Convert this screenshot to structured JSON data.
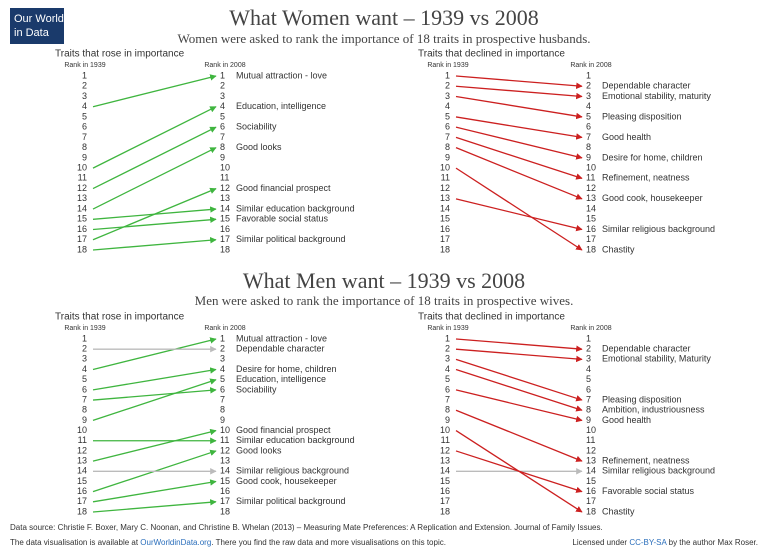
{
  "logo": {
    "line1": "Our World",
    "line2": "in Data"
  },
  "sections": [
    {
      "title": "What Women want – 1939 vs 2008",
      "subtitle": "Women were asked to rank the importance of 18 traits in prospective husbands."
    },
    {
      "title": "What Men want – 1939 vs 2008",
      "subtitle": "Men were asked to rank the importance of 18 traits in prospective wives."
    }
  ],
  "chart_data": [
    {
      "type": "slope",
      "title": "Traits that rose in importance",
      "x_labels": [
        "Rank in 1939",
        "Rank in 2008"
      ],
      "ylim": [
        1,
        18
      ],
      "yticks": [
        1,
        2,
        3,
        4,
        5,
        6,
        7,
        8,
        9,
        10,
        11,
        12,
        13,
        14,
        15,
        16,
        17,
        18
      ],
      "categories": [
        "Mutual attraction - love",
        "Education, intelligence",
        "Sociability",
        "Good looks",
        "Good financial prospect",
        "Similar education background",
        "Favorable social status",
        "Similar political background"
      ],
      "start": [
        4,
        10,
        12,
        14,
        17,
        15,
        16,
        18
      ],
      "end": [
        1,
        4,
        6,
        8,
        12,
        14,
        15,
        17
      ],
      "colors": [
        "#3fb53f",
        "#3fb53f",
        "#3fb53f",
        "#3fb53f",
        "#3fb53f",
        "#3fb53f",
        "#3fb53f",
        "#3fb53f"
      ]
    },
    {
      "type": "slope",
      "title": "Traits that declined in importance",
      "x_labels": [
        "Rank in 1939",
        "Rank in 2008"
      ],
      "ylim": [
        1,
        18
      ],
      "yticks": [
        1,
        2,
        3,
        4,
        5,
        6,
        7,
        8,
        9,
        10,
        11,
        12,
        13,
        14,
        15,
        16,
        17,
        18
      ],
      "categories": [
        "Dependable character",
        "Emotional stability, maturity",
        "Pleasing disposition",
        "Good health",
        "Desire for home, children",
        "Refinement, neatness",
        "Good cook, housekeeper",
        "Similar religious background",
        "Chastity"
      ],
      "start": [
        1,
        2,
        3,
        5,
        6,
        7,
        8,
        13,
        10
      ],
      "end": [
        2,
        3,
        5,
        7,
        9,
        11,
        13,
        16,
        18
      ],
      "colors": [
        "#cc2020",
        "#cc2020",
        "#cc2020",
        "#cc2020",
        "#cc2020",
        "#cc2020",
        "#cc2020",
        "#cc2020",
        "#cc2020"
      ]
    },
    {
      "type": "slope",
      "title": "Traits that rose in importance",
      "x_labels": [
        "Rank in 1939",
        "Rank in 2008"
      ],
      "ylim": [
        1,
        18
      ],
      "yticks": [
        1,
        2,
        3,
        4,
        5,
        6,
        7,
        8,
        9,
        10,
        11,
        12,
        13,
        14,
        15,
        16,
        17,
        18
      ],
      "categories": [
        "Mutual attraction - love",
        "Dependable character",
        "Desire for home, children",
        "Education, intelligence",
        "Sociability",
        "Good financial prospect",
        "Similar education background",
        "Good looks",
        "Similar religious background",
        "Good cook, housekeeper",
        "Similar political background"
      ],
      "start": [
        4,
        2,
        6,
        9,
        7,
        13,
        11,
        16,
        14,
        17,
        18
      ],
      "end": [
        1,
        2,
        4,
        5,
        6,
        10,
        11,
        12,
        14,
        15,
        17
      ],
      "colors": [
        "#3fb53f",
        "#bbbbbb",
        "#3fb53f",
        "#3fb53f",
        "#3fb53f",
        "#3fb53f",
        "#3fb53f",
        "#3fb53f",
        "#bbbbbb",
        "#3fb53f",
        "#3fb53f"
      ]
    },
    {
      "type": "slope",
      "title": "Traits that declined in importance",
      "x_labels": [
        "Rank in 1939",
        "Rank in 2008"
      ],
      "ylim": [
        1,
        18
      ],
      "yticks": [
        1,
        2,
        3,
        4,
        5,
        6,
        7,
        8,
        9,
        10,
        11,
        12,
        13,
        14,
        15,
        16,
        17,
        18
      ],
      "categories": [
        "Dependable character",
        "Emotional stability, Maturity",
        "Pleasing disposition",
        "Ambition, industriousness",
        "Good health",
        "Refinement, neatness",
        "Similar religious background",
        "Favorable social status",
        "Chastity"
      ],
      "start": [
        1,
        2,
        3,
        4,
        6,
        8,
        14,
        12,
        10
      ],
      "end": [
        2,
        3,
        7,
        8,
        9,
        13,
        14,
        16,
        18
      ],
      "colors": [
        "#cc2020",
        "#cc2020",
        "#cc2020",
        "#cc2020",
        "#cc2020",
        "#cc2020",
        "#bbbbbb",
        "#cc2020",
        "#cc2020"
      ]
    }
  ],
  "footer": {
    "source": "Data source: Christie F. Boxer, Mary C. Noonan, and Christine B. Whelan (2013) – Measuring Mate Preferences: A Replication and Extension. Journal of Family Issues.",
    "availability_prefix": "The data visualisation is available at ",
    "site": "OurWorldinData.org",
    "availability_suffix": ". There you find the raw data and more visualisations on this topic.",
    "license_prefix": "Licensed under ",
    "license": "CC-BY-SA",
    "license_suffix": " by the author Max Roser."
  }
}
